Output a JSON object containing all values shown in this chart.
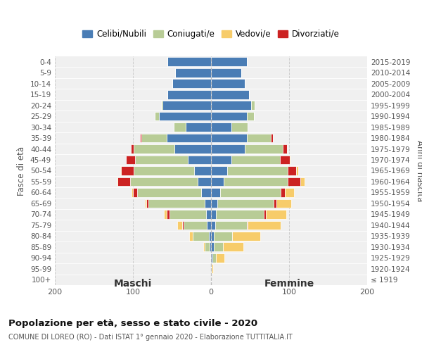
{
  "age_groups": [
    "0-4",
    "5-9",
    "10-14",
    "15-19",
    "20-24",
    "25-29",
    "30-34",
    "35-39",
    "40-44",
    "45-49",
    "50-54",
    "55-59",
    "60-64",
    "65-69",
    "70-74",
    "75-79",
    "80-84",
    "85-89",
    "90-94",
    "95-99",
    "100+"
  ],
  "birth_years": [
    "2015-2019",
    "2010-2014",
    "2005-2009",
    "2000-2004",
    "1995-1999",
    "1990-1994",
    "1985-1989",
    "1980-1984",
    "1975-1979",
    "1970-1974",
    "1965-1969",
    "1960-1964",
    "1955-1959",
    "1950-1954",
    "1945-1949",
    "1940-1944",
    "1935-1939",
    "1930-1934",
    "1925-1929",
    "1920-1924",
    "≤ 1919"
  ],
  "colors": {
    "celibi": "#4a7db5",
    "coniugati": "#b8cc96",
    "vedovi": "#f7cc6a",
    "divorziati": "#cc2222"
  },
  "maschi_celibi": [
    56,
    46,
    50,
    56,
    62,
    67,
    32,
    57,
    47,
    30,
    22,
    17,
    13,
    8,
    6,
    5,
    3,
    2,
    0,
    0,
    0
  ],
  "maschi_coniugati": [
    0,
    0,
    0,
    0,
    2,
    5,
    16,
    32,
    52,
    67,
    77,
    87,
    82,
    72,
    47,
    30,
    20,
    6,
    1,
    0,
    0
  ],
  "maschi_vedovi": [
    0,
    0,
    0,
    0,
    0,
    0,
    0,
    0,
    0,
    0,
    1,
    1,
    2,
    2,
    3,
    6,
    5,
    2,
    0,
    0,
    0
  ],
  "maschi_divorziati": [
    0,
    0,
    0,
    0,
    0,
    0,
    0,
    2,
    4,
    12,
    16,
    16,
    5,
    3,
    4,
    2,
    0,
    0,
    0,
    0,
    0
  ],
  "femmine_nubili": [
    46,
    39,
    43,
    49,
    51,
    46,
    26,
    46,
    43,
    26,
    21,
    16,
    12,
    8,
    6,
    5,
    4,
    4,
    2,
    0,
    0
  ],
  "femmine_coniugate": [
    0,
    0,
    0,
    0,
    5,
    9,
    21,
    31,
    49,
    62,
    77,
    82,
    77,
    72,
    62,
    41,
    23,
    11,
    4,
    1,
    0
  ],
  "femmine_vedove": [
    0,
    0,
    0,
    0,
    0,
    0,
    0,
    0,
    0,
    1,
    3,
    6,
    11,
    19,
    26,
    42,
    36,
    26,
    11,
    2,
    0
  ],
  "femmine_divorziate": [
    0,
    0,
    0,
    0,
    0,
    0,
    0,
    2,
    5,
    13,
    11,
    16,
    6,
    4,
    2,
    1,
    0,
    0,
    0,
    0,
    0
  ],
  "title": "Popolazione per età, sesso e stato civile - 2020",
  "subtitle": "COMUNE DI LOREO (RO) - Dati ISTAT 1° gennaio 2020 - Elaborazione TUTTITALIA.IT",
  "legend_labels": [
    "Celibi/Nubili",
    "Coniugati/e",
    "Vedovi/e",
    "Divorziati/e"
  ],
  "xlim": 200,
  "bg_color": "#ffffff",
  "plot_bg": "#f0f0f0"
}
